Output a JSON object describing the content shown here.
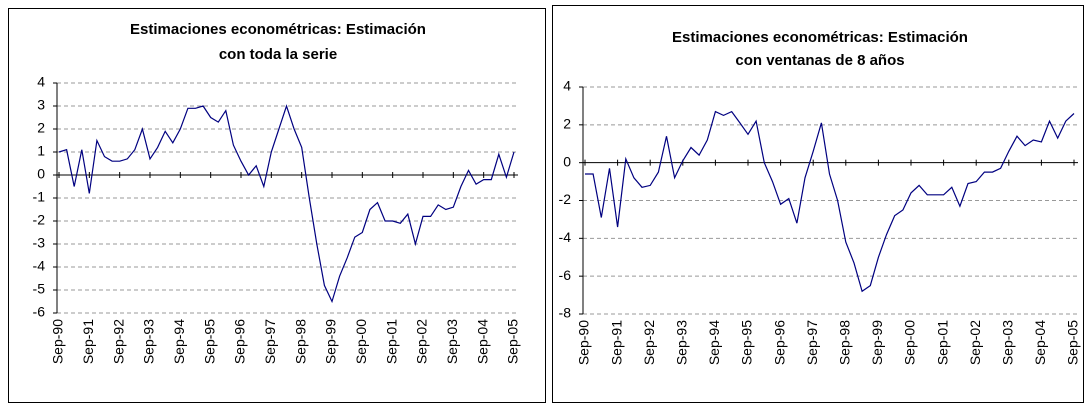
{
  "charts": [
    {
      "chart_data": {
        "type": "line",
        "title": [
          "Estimaciones econométricas: Estimación",
          "con toda la serie"
        ],
        "categories": [
          "Sep-90",
          null,
          null,
          null,
          "Sep-91",
          null,
          null,
          null,
          "Sep-92",
          null,
          null,
          null,
          "Sep-93",
          null,
          null,
          null,
          "Sep-94",
          null,
          null,
          null,
          "Sep-95",
          null,
          null,
          null,
          "Sep-96",
          null,
          null,
          null,
          "Sep-97",
          null,
          null,
          null,
          "Sep-98",
          null,
          null,
          null,
          "Sep-99",
          null,
          null,
          null,
          "Sep-00",
          null,
          null,
          null,
          "Sep-01",
          null,
          null,
          null,
          "Sep-02",
          null,
          null,
          null,
          "Sep-03",
          null,
          null,
          null,
          "Sep-04",
          null,
          null,
          null,
          "Sep-05"
        ],
        "series": [
          {
            "color": "#000080",
            "values": [
              1.0,
              1.1,
              -0.5,
              1.1,
              -0.8,
              1.5,
              0.8,
              0.6,
              0.6,
              0.7,
              1.1,
              2.0,
              0.7,
              1.2,
              1.9,
              1.4,
              2.0,
              2.9,
              2.9,
              3.0,
              2.5,
              2.3,
              2.8,
              1.3,
              0.6,
              0.0,
              0.4,
              -0.5,
              1.0,
              2.0,
              3.0,
              2.0,
              1.2,
              -1.0,
              -3.0,
              -4.8,
              -5.5,
              -4.4,
              -3.6,
              -2.7,
              -2.5,
              -1.5,
              -1.2,
              -2.0,
              -2.0,
              -2.1,
              -1.7,
              -3.0,
              -1.8,
              -1.8,
              -1.3,
              -1.5,
              -1.4,
              -0.5,
              0.2,
              -0.4,
              -0.2,
              -0.2,
              0.9,
              -0.1,
              1.0
            ]
          }
        ],
        "ylim": [
          -6,
          4
        ],
        "yticks": [
          4,
          3,
          2,
          1,
          0,
          -1,
          -2,
          -3,
          -4,
          -5,
          -6
        ],
        "grid": true
      }
    },
    {
      "chart_data": {
        "type": "line",
        "title": [
          "Estimaciones econométricas: Estimación",
          "con ventanas de 8 años"
        ],
        "categories": [
          "Sep-90",
          null,
          null,
          null,
          "Sep-91",
          null,
          null,
          null,
          "Sep-92",
          null,
          null,
          null,
          "Sep-93",
          null,
          null,
          null,
          "Sep-94",
          null,
          null,
          null,
          "Sep-95",
          null,
          null,
          null,
          "Sep-96",
          null,
          null,
          null,
          "Sep-97",
          null,
          null,
          null,
          "Sep-98",
          null,
          null,
          null,
          "Sep-99",
          null,
          null,
          null,
          "Sep-00",
          null,
          null,
          null,
          "Sep-01",
          null,
          null,
          null,
          "Sep-02",
          null,
          null,
          null,
          "Sep-03",
          null,
          null,
          null,
          "Sep-04",
          null,
          null,
          null,
          "Sep-05"
        ],
        "series": [
          {
            "color": "#000080",
            "values": [
              -0.6,
              -0.6,
              -2.9,
              -0.3,
              -3.4,
              0.2,
              -0.8,
              -1.3,
              -1.2,
              -0.5,
              1.4,
              -0.8,
              0.1,
              0.8,
              0.4,
              1.2,
              2.7,
              2.5,
              2.7,
              2.1,
              1.5,
              2.2,
              0.0,
              -1.0,
              -2.2,
              -1.9,
              -3.2,
              -0.8,
              0.6,
              2.1,
              -0.6,
              -2.0,
              -4.2,
              -5.3,
              -6.8,
              -6.5,
              -5.0,
              -3.8,
              -2.8,
              -2.5,
              -1.6,
              -1.2,
              -1.7,
              -1.7,
              -1.7,
              -1.3,
              -2.3,
              -1.1,
              -1.0,
              -0.5,
              -0.5,
              -0.3,
              0.6,
              1.4,
              0.9,
              1.2,
              1.1,
              2.2,
              1.3,
              2.2,
              2.6
            ]
          }
        ],
        "ylim": [
          -8,
          4
        ],
        "yticks": [
          4,
          2,
          0,
          -2,
          -4,
          -6,
          -8
        ],
        "grid": true
      }
    }
  ]
}
